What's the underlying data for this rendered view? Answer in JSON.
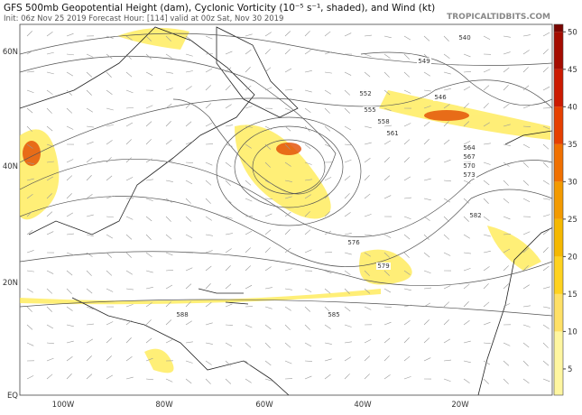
{
  "header": {
    "title": "GFS 500mb Geopotential Height (dam), Cyclonic Vorticity (10⁻⁵ s⁻¹, shaded), and Wind (kt)",
    "subtitle": "Init: 06z Nov 25 2019   Forecast Hour: [114]   valid at 00z Sat, Nov 30 2019",
    "credit": "TROPICALTIDBITS.COM"
  },
  "map": {
    "lat_labels": [
      "60N",
      "40N",
      "20N",
      "EQ"
    ],
    "lon_labels": [
      "100W",
      "80W",
      "60W",
      "40W",
      "20W"
    ],
    "contour_labels": [
      540,
      546,
      549,
      552,
      555,
      558,
      561,
      564,
      567,
      570,
      573,
      576,
      579,
      582,
      585,
      588
    ]
  },
  "colorbar": {
    "range": [
      1.5,
      51
    ],
    "ticks": [
      5,
      10,
      15,
      20,
      25,
      30,
      35,
      40,
      45,
      50
    ],
    "colors": [
      "#fff6a0",
      "#ffe066",
      "#ffd21f",
      "#f5b800",
      "#f39a00",
      "#f07000",
      "#e64000",
      "#cc1a00",
      "#a50c00",
      "#7a0500"
    ]
  }
}
